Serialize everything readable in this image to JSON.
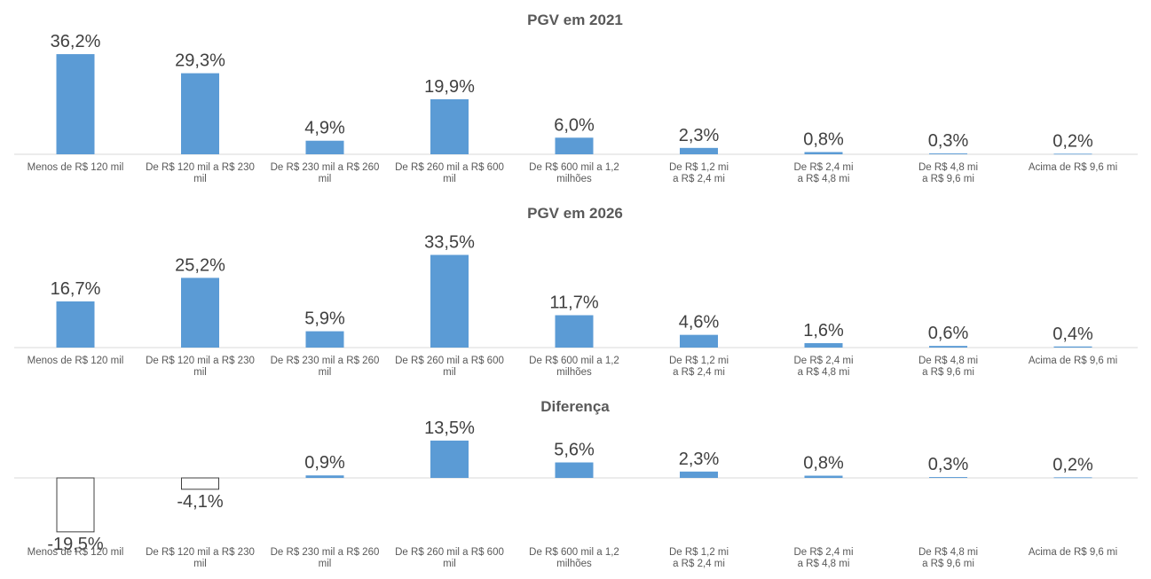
{
  "chart_data": [
    {
      "type": "bar",
      "title": "PGV em 2021",
      "categories": [
        [
          "Menos de R$ 120 mil"
        ],
        [
          "De R$ 120 mil a R$ 230",
          "mil"
        ],
        [
          "De R$ 230 mil a R$ 260",
          "mil"
        ],
        [
          "De R$ 260 mil a R$ 600",
          "mil"
        ],
        [
          "De R$ 600 mil a 1,2",
          "milhões"
        ],
        [
          "De R$ 1,2 mi",
          "a R$ 2,4 mi"
        ],
        [
          "De R$ 2,4 mi",
          "a R$ 4,8 mi"
        ],
        [
          "De R$ 4,8 mi",
          "a R$ 9,6 mi"
        ],
        [
          "Acima de R$ 9,6 mi"
        ]
      ],
      "values": [
        36.2,
        29.3,
        4.9,
        19.9,
        6.0,
        2.3,
        0.8,
        0.3,
        0.2
      ],
      "labels": [
        "36,2%",
        "29,3%",
        "4,9%",
        "19,9%",
        "6,0%",
        "2,3%",
        "0,8%",
        "0,3%",
        "0,2%"
      ],
      "unit": "%",
      "color": "#5B9BD5"
    },
    {
      "type": "bar",
      "title": "PGV em 2026",
      "categories": [
        [
          "Menos de R$ 120 mil"
        ],
        [
          "De R$ 120 mil a R$ 230",
          "mil"
        ],
        [
          "De R$ 230 mil a R$ 260",
          "mil"
        ],
        [
          "De R$ 260 mil a R$ 600",
          "mil"
        ],
        [
          "De R$ 600 mil a 1,2",
          "milhões"
        ],
        [
          "De R$ 1,2 mi",
          "a R$ 2,4 mi"
        ],
        [
          "De R$ 2,4 mi",
          "a R$ 4,8 mi"
        ],
        [
          "De R$ 4,8 mi",
          "a R$ 9,6 mi"
        ],
        [
          "Acima de R$ 9,6 mi"
        ]
      ],
      "values": [
        16.7,
        25.2,
        5.9,
        33.5,
        11.7,
        4.6,
        1.6,
        0.6,
        0.4
      ],
      "labels": [
        "16,7%",
        "25,2%",
        "5,9%",
        "33,5%",
        "11,7%",
        "4,6%",
        "1,6%",
        "0,6%",
        "0,4%"
      ],
      "unit": "%",
      "color": "#5B9BD5"
    },
    {
      "type": "bar",
      "title": "Diferença",
      "categories": [
        [
          "Menos de R$ 120 mil"
        ],
        [
          "De R$ 120 mil a R$ 230",
          "mil"
        ],
        [
          "De R$ 230 mil a R$ 260",
          "mil"
        ],
        [
          "De R$ 260 mil a R$ 600",
          "mil"
        ],
        [
          "De R$ 600 mil a 1,2",
          "milhões"
        ],
        [
          "De R$ 1,2 mi",
          "a R$ 2,4 mi"
        ],
        [
          "De R$ 2,4 mi",
          "a R$ 4,8 mi"
        ],
        [
          "De R$ 4,8 mi",
          "a R$ 9,6 mi"
        ],
        [
          "Acima de R$ 9,6 mi"
        ]
      ],
      "values": [
        -19.5,
        -4.1,
        0.9,
        13.5,
        5.6,
        2.3,
        0.8,
        0.3,
        0.2
      ],
      "labels": [
        "-19,5%",
        "-4,1%",
        "0,9%",
        "13,5%",
        "5,6%",
        "2,3%",
        "0,8%",
        "0,3%",
        "0,2%"
      ],
      "unit": "%",
      "color": "#5B9BD5",
      "negative_style": "outline"
    }
  ]
}
